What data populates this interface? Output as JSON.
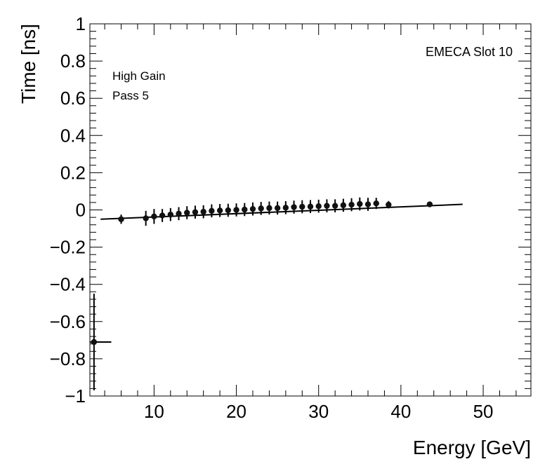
{
  "chart_data": {
    "type": "scatter",
    "title": "",
    "xlabel": "Energy [GeV]",
    "ylabel": "Time [ns]",
    "xlim": [
      2.2,
      55.8
    ],
    "ylim": [
      -1,
      1
    ],
    "x_ticks": [
      10,
      20,
      30,
      40,
      50
    ],
    "x_tick_labels": [
      "10",
      "20",
      "30",
      "40",
      "50"
    ],
    "y_ticks": [
      -1,
      -0.8,
      -0.6,
      -0.4,
      -0.2,
      0,
      0.2,
      0.4,
      0.6,
      0.8,
      1
    ],
    "y_tick_labels": [
      "−1",
      "−0.8",
      "−0.6",
      "−0.4",
      "−0.2",
      "0",
      "0.2",
      "0.4",
      "0.6",
      "0.8",
      "1"
    ],
    "annotations": {
      "slot": "EMECA Slot 10",
      "gain": "High Gain",
      "pass": "Pass 5"
    },
    "fit_segments": [
      {
        "x0": 2.2,
        "x1": 4.8,
        "y": -0.71
      },
      {
        "x0": 3.5,
        "x1": 47.5,
        "y_start": -0.05,
        "y_end": 0.03
      }
    ],
    "points": [
      {
        "x": 2.7,
        "y": -0.71,
        "err": 0.26
      },
      {
        "x": 6.0,
        "y": -0.05,
        "err": 0.025
      },
      {
        "x": 9.0,
        "y": -0.045,
        "err": 0.04
      },
      {
        "x": 10.0,
        "y": -0.035,
        "err": 0.04
      },
      {
        "x": 11.0,
        "y": -0.03,
        "err": 0.035
      },
      {
        "x": 12.0,
        "y": -0.025,
        "err": 0.035
      },
      {
        "x": 13.0,
        "y": -0.02,
        "err": 0.035
      },
      {
        "x": 14.0,
        "y": -0.015,
        "err": 0.035
      },
      {
        "x": 15.0,
        "y": -0.012,
        "err": 0.035
      },
      {
        "x": 16.0,
        "y": -0.01,
        "err": 0.035
      },
      {
        "x": 17.0,
        "y": -0.005,
        "err": 0.035
      },
      {
        "x": 18.0,
        "y": -0.003,
        "err": 0.035
      },
      {
        "x": 19.0,
        "y": -0.002,
        "err": 0.035
      },
      {
        "x": 20.0,
        "y": 0.0,
        "err": 0.035
      },
      {
        "x": 21.0,
        "y": 0.002,
        "err": 0.035
      },
      {
        "x": 22.0,
        "y": 0.005,
        "err": 0.035
      },
      {
        "x": 23.0,
        "y": 0.008,
        "err": 0.035
      },
      {
        "x": 24.0,
        "y": 0.01,
        "err": 0.035
      },
      {
        "x": 25.0,
        "y": 0.01,
        "err": 0.035
      },
      {
        "x": 26.0,
        "y": 0.012,
        "err": 0.035
      },
      {
        "x": 27.0,
        "y": 0.015,
        "err": 0.035
      },
      {
        "x": 28.0,
        "y": 0.017,
        "err": 0.035
      },
      {
        "x": 29.0,
        "y": 0.018,
        "err": 0.035
      },
      {
        "x": 30.0,
        "y": 0.02,
        "err": 0.035
      },
      {
        "x": 31.0,
        "y": 0.022,
        "err": 0.035
      },
      {
        "x": 32.0,
        "y": 0.022,
        "err": 0.035
      },
      {
        "x": 33.0,
        "y": 0.025,
        "err": 0.035
      },
      {
        "x": 34.0,
        "y": 0.028,
        "err": 0.035
      },
      {
        "x": 35.0,
        "y": 0.032,
        "err": 0.035
      },
      {
        "x": 36.0,
        "y": 0.03,
        "err": 0.035
      },
      {
        "x": 37.0,
        "y": 0.035,
        "err": 0.03
      },
      {
        "x": 38.5,
        "y": 0.028,
        "err": 0.02
      },
      {
        "x": 43.5,
        "y": 0.03,
        "err": 0.01
      }
    ],
    "grid": false,
    "legend": "none"
  }
}
